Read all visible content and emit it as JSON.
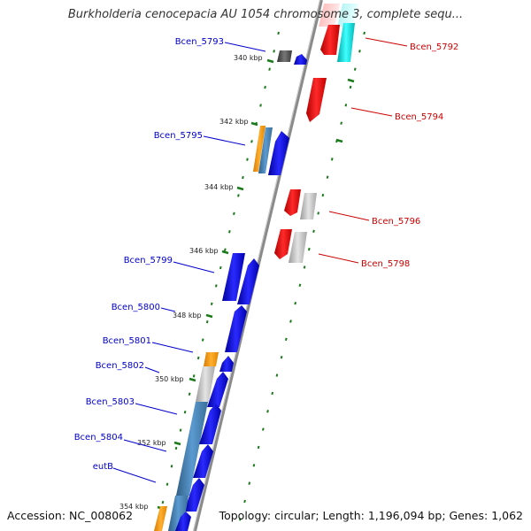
{
  "header": {
    "title": "Burkholderia cenocepacia AU 1054 chromosome 3, complete sequ..."
  },
  "footer": {
    "accession_label": "Accession:",
    "accession": "NC_008062",
    "topology_label": "Topology:",
    "topology": "circular",
    "length_label": "Length:",
    "length": "1,196,094 bp",
    "genes_label": "Genes:",
    "genes": "1,062"
  },
  "ticks": [
    {
      "label": "340 kbp"
    },
    {
      "label": "342 kbp"
    },
    {
      "label": "344 kbp"
    },
    {
      "label": "346 kbp"
    },
    {
      "label": "348 kbp"
    },
    {
      "label": "350 kbp"
    },
    {
      "label": "352 kbp"
    },
    {
      "label": "354 kbp"
    }
  ],
  "genes": {
    "forward_strand": [
      {
        "name": "Bcen_5792",
        "color": "#ff0000"
      },
      {
        "name": "Bcen_5794",
        "color": "#ff0000"
      },
      {
        "name": "Bcen_5796",
        "color": "#ff0000"
      },
      {
        "name": "Bcen_5798",
        "color": "#ff0000"
      }
    ],
    "reverse_strand": [
      {
        "name": "Bcen_5793",
        "color": "#0000ff"
      },
      {
        "name": "Bcen_5795",
        "color": "#0000ff"
      },
      {
        "name": "Bcen_5799",
        "color": "#0000ff"
      },
      {
        "name": "Bcen_5800",
        "color": "#0000ff"
      },
      {
        "name": "Bcen_5801",
        "color": "#0000ff"
      },
      {
        "name": "Bcen_5802",
        "color": "#0000ff"
      },
      {
        "name": "Bcen_5803",
        "color": "#0000ff"
      },
      {
        "name": "Bcen_5804",
        "color": "#0000ff"
      },
      {
        "name": "eutB",
        "color": "#0000ff"
      }
    ]
  },
  "colors": {
    "forward_label": "#cc0000",
    "reverse_label": "#0000cc",
    "tick": "#1a7a1a",
    "backbone": "#888888",
    "cog_orange": "#ff9900",
    "cog_steelblue": "#4682b4",
    "cog_gray": "#c0c0c0",
    "cog_cyan": "#00cccc",
    "cog_dark": "#444444"
  }
}
